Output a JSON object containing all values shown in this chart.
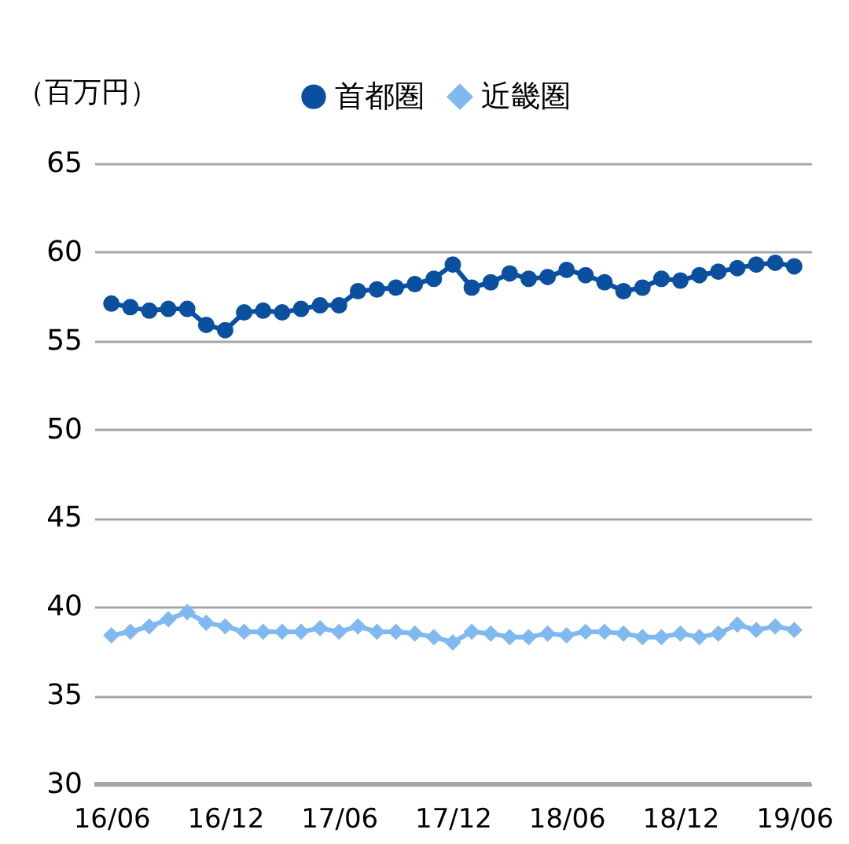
{
  "chart_data": {
    "type": "line",
    "ylabel": "（百万円）",
    "categories": [
      "16/06",
      null,
      null,
      null,
      null,
      null,
      "16/12",
      null,
      null,
      null,
      null,
      null,
      "17/06",
      null,
      null,
      null,
      null,
      null,
      "17/12",
      null,
      null,
      null,
      null,
      null,
      "18/06",
      null,
      null,
      null,
      null,
      null,
      "18/12",
      null,
      null,
      null,
      null,
      null,
      "19/06"
    ],
    "series": [
      {
        "name": "首都圏",
        "color": "#0b4f9f",
        "marker": "circle",
        "values": [
          57.1,
          56.9,
          56.7,
          56.8,
          56.8,
          55.9,
          55.6,
          56.6,
          56.7,
          56.6,
          56.8,
          57.0,
          57.0,
          57.8,
          57.9,
          58.0,
          58.2,
          58.5,
          59.3,
          58.0,
          58.3,
          58.8,
          58.5,
          58.6,
          59.0,
          58.7,
          58.3,
          57.8,
          58.0,
          58.5,
          58.4,
          58.7,
          58.9,
          59.1,
          59.3,
          59.4,
          59.2
        ]
      },
      {
        "name": "近畿圏",
        "color": "#80b8f0",
        "marker": "diamond",
        "values": [
          38.4,
          38.6,
          38.9,
          39.3,
          39.7,
          39.1,
          38.9,
          38.6,
          38.6,
          38.6,
          38.6,
          38.8,
          38.6,
          38.9,
          38.6,
          38.6,
          38.5,
          38.3,
          38.0,
          38.6,
          38.5,
          38.3,
          38.3,
          38.5,
          38.4,
          38.6,
          38.6,
          38.5,
          38.3,
          38.3,
          38.5,
          38.3,
          38.5,
          39.0,
          38.7,
          38.9,
          38.7
        ]
      }
    ],
    "ylim": [
      30,
      65
    ],
    "yticks": [
      30,
      35,
      40,
      45,
      50,
      55,
      60,
      65
    ],
    "grid": "y",
    "legend": "top",
    "line_style": "solid"
  }
}
